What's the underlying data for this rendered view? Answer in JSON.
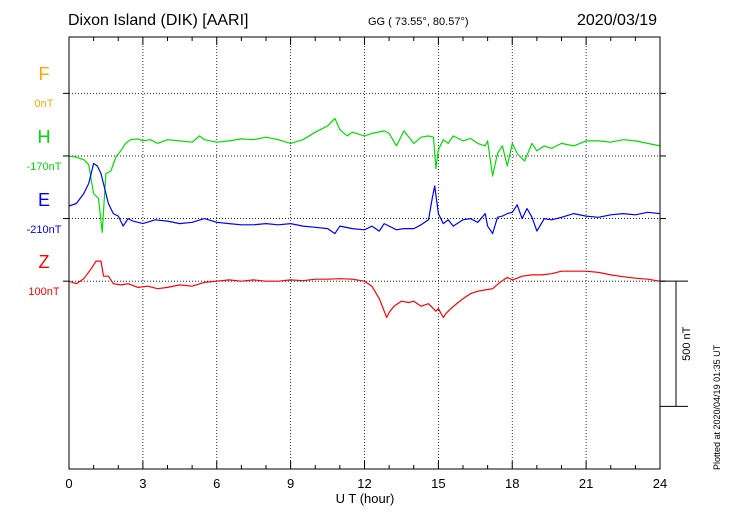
{
  "header": {
    "title": "Dixon Island (DIK)  [AARI]",
    "coords": "GG ( 73.55°,  80.57°)",
    "date": "2020/03/19"
  },
  "footer": {
    "plotted": "Plotted at 2020/04/19 01:35 UT"
  },
  "chart_data": {
    "type": "line",
    "xlabel": "U T (hour)",
    "xlim": [
      0,
      24
    ],
    "xticks": [
      0,
      3,
      6,
      9,
      12,
      15,
      18,
      21,
      24
    ],
    "xtick_labels": [
      "0",
      "3",
      "6",
      "9",
      "12",
      "15",
      "18",
      "21",
      "24"
    ],
    "ylim": [
      -500,
      1225
    ],
    "grid": true,
    "scale_bar": {
      "label": "500 nT",
      "value": 500
    },
    "series": [
      {
        "name": "F",
        "baseline": "0nT",
        "color": "#ffa500",
        "offset": 1000,
        "x": [],
        "y": []
      },
      {
        "name": "H",
        "baseline": "-170nT",
        "color": "#00dd00",
        "offset": 750,
        "x": [
          0,
          0.3,
          0.6,
          0.8,
          1.0,
          1.2,
          1.35,
          1.5,
          1.7,
          1.9,
          2.1,
          2.3,
          2.5,
          2.8,
          3.0,
          3.3,
          3.6,
          4.0,
          4.5,
          5.0,
          5.3,
          5.5,
          6.0,
          6.5,
          7.0,
          7.5,
          8.0,
          8.5,
          9.0,
          9.5,
          10.0,
          10.5,
          10.8,
          11.0,
          11.3,
          11.5,
          12.0,
          12.3,
          12.8,
          13.0,
          13.3,
          13.6,
          14.0,
          14.3,
          14.6,
          14.8,
          14.9,
          15.0,
          15.2,
          15.4,
          15.6,
          16.0,
          16.3,
          16.6,
          16.9,
          17.0,
          17.2,
          17.4,
          17.6,
          17.8,
          18.0,
          18.2,
          18.5,
          18.8,
          19.0,
          19.3,
          19.6,
          20.0,
          20.5,
          21.0,
          21.5,
          22.0,
          22.5,
          23.0,
          23.5,
          24.0
        ],
        "y": [
          750,
          745,
          735,
          715,
          600,
          580,
          445,
          680,
          690,
          745,
          770,
          800,
          815,
          818,
          810,
          815,
          800,
          815,
          810,
          805,
          830,
          815,
          805,
          810,
          818,
          815,
          825,
          815,
          800,
          815,
          845,
          870,
          900,
          855,
          830,
          845,
          830,
          840,
          850,
          840,
          790,
          850,
          800,
          825,
          830,
          825,
          700,
          775,
          815,
          800,
          830,
          810,
          820,
          800,
          790,
          810,
          670,
          760,
          790,
          710,
          800,
          760,
          730,
          800,
          770,
          790,
          780,
          800,
          790,
          810,
          810,
          805,
          815,
          810,
          800,
          790
        ]
      },
      {
        "name": "E",
        "baseline": "-210nT",
        "color": "#0000ff",
        "offset": 500,
        "x": [
          0,
          0.3,
          0.6,
          0.8,
          1.0,
          1.15,
          1.3,
          1.45,
          1.6,
          1.8,
          2.0,
          2.2,
          2.4,
          2.6,
          3.0,
          3.5,
          4.0,
          4.5,
          5.0,
          5.5,
          6.0,
          6.5,
          7.0,
          7.5,
          8.0,
          8.5,
          9.0,
          9.5,
          10.0,
          10.5,
          10.8,
          11.0,
          11.5,
          12.0,
          12.3,
          12.6,
          12.8,
          13.0,
          13.3,
          13.6,
          14.0,
          14.3,
          14.6,
          14.75,
          14.85,
          15.0,
          15.2,
          15.4,
          15.6,
          16.0,
          16.3,
          16.6,
          16.9,
          17.0,
          17.2,
          17.4,
          17.6,
          17.8,
          18.0,
          18.2,
          18.4,
          18.6,
          18.8,
          19.0,
          19.3,
          19.6,
          20.0,
          20.5,
          21.0,
          21.5,
          22.0,
          22.5,
          23.0,
          23.5,
          24.0
        ],
        "y": [
          550,
          560,
          600,
          640,
          720,
          710,
          680,
          620,
          560,
          520,
          510,
          470,
          500,
          490,
          480,
          495,
          490,
          480,
          485,
          500,
          485,
          480,
          475,
          475,
          480,
          475,
          480,
          470,
          465,
          460,
          440,
          470,
          460,
          455,
          470,
          450,
          480,
          470,
          455,
          460,
          460,
          475,
          495,
          580,
          630,
          520,
          480,
          495,
          470,
          495,
          500,
          485,
          520,
          470,
          440,
          505,
          510,
          520,
          525,
          555,
          500,
          540,
          505,
          450,
          500,
          495,
          505,
          520,
          510,
          505,
          515,
          520,
          515,
          525,
          520
        ]
      },
      {
        "name": "Z",
        "baseline": "100nT",
        "color": "#ff0000",
        "offset": 250,
        "x": [
          0,
          0.3,
          0.6,
          0.9,
          1.1,
          1.3,
          1.4,
          1.6,
          1.8,
          2.1,
          2.4,
          2.8,
          3.2,
          3.6,
          4.0,
          4.5,
          5.0,
          5.5,
          6.0,
          6.5,
          7.0,
          7.5,
          8.0,
          8.5,
          9.0,
          9.5,
          10.0,
          10.5,
          11.0,
          11.5,
          12.0,
          12.3,
          12.6,
          12.8,
          12.9,
          13.0,
          13.2,
          13.5,
          13.8,
          14.0,
          14.3,
          14.6,
          14.9,
          15.0,
          15.2,
          15.3,
          15.5,
          15.8,
          16.0,
          16.3,
          16.6,
          16.9,
          17.2,
          17.5,
          17.8,
          18.0,
          18.2,
          18.4,
          18.8,
          19.2,
          19.6,
          20.0,
          20.5,
          21.0,
          21.5,
          22.0,
          22.5,
          23.0,
          23.5,
          24.0
        ],
        "y": [
          250,
          240,
          260,
          300,
          330,
          330,
          270,
          270,
          240,
          235,
          240,
          225,
          230,
          220,
          225,
          235,
          230,
          245,
          250,
          255,
          250,
          255,
          250,
          250,
          255,
          252,
          258,
          258,
          260,
          258,
          250,
          230,
          180,
          130,
          105,
          125,
          150,
          170,
          165,
          170,
          150,
          160,
          130,
          140,
          105,
          120,
          140,
          165,
          180,
          200,
          210,
          215,
          220,
          245,
          265,
          255,
          262,
          270,
          275,
          275,
          280,
          290,
          290,
          290,
          285,
          275,
          268,
          262,
          258,
          250
        ]
      }
    ]
  }
}
